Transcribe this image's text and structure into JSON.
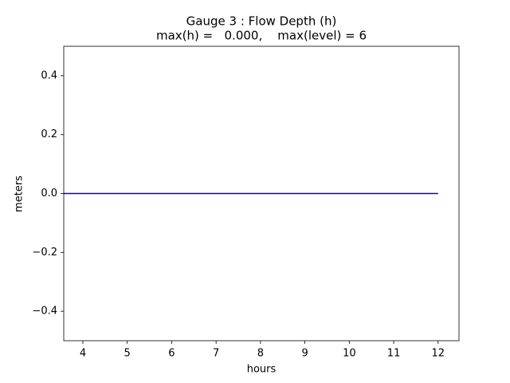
{
  "chart_data": {
    "type": "line",
    "title": "Gauge 3 : Flow Depth (h)",
    "subtitle": "max(h) =   0.000,    max(level) = 6",
    "x_label": "hours",
    "y_label": "meters",
    "x": [
      3.57,
      12
    ],
    "series": [
      {
        "color": "#0000ff",
        "values": [
          0,
          0
        ]
      }
    ],
    "xlim": [
      3.57,
      12.47
    ],
    "xticks": [
      4,
      5,
      6,
      7,
      8,
      9,
      10,
      11,
      12
    ],
    "ylim": [
      -0.5,
      0.5
    ],
    "yticks": [
      {
        "value": -0.4,
        "label": "−0.4"
      },
      {
        "value": -0.2,
        "label": "−0.2"
      },
      {
        "value": 0,
        "label": "0.0"
      },
      0.2,
      0.4
    ],
    "grid": false
  }
}
